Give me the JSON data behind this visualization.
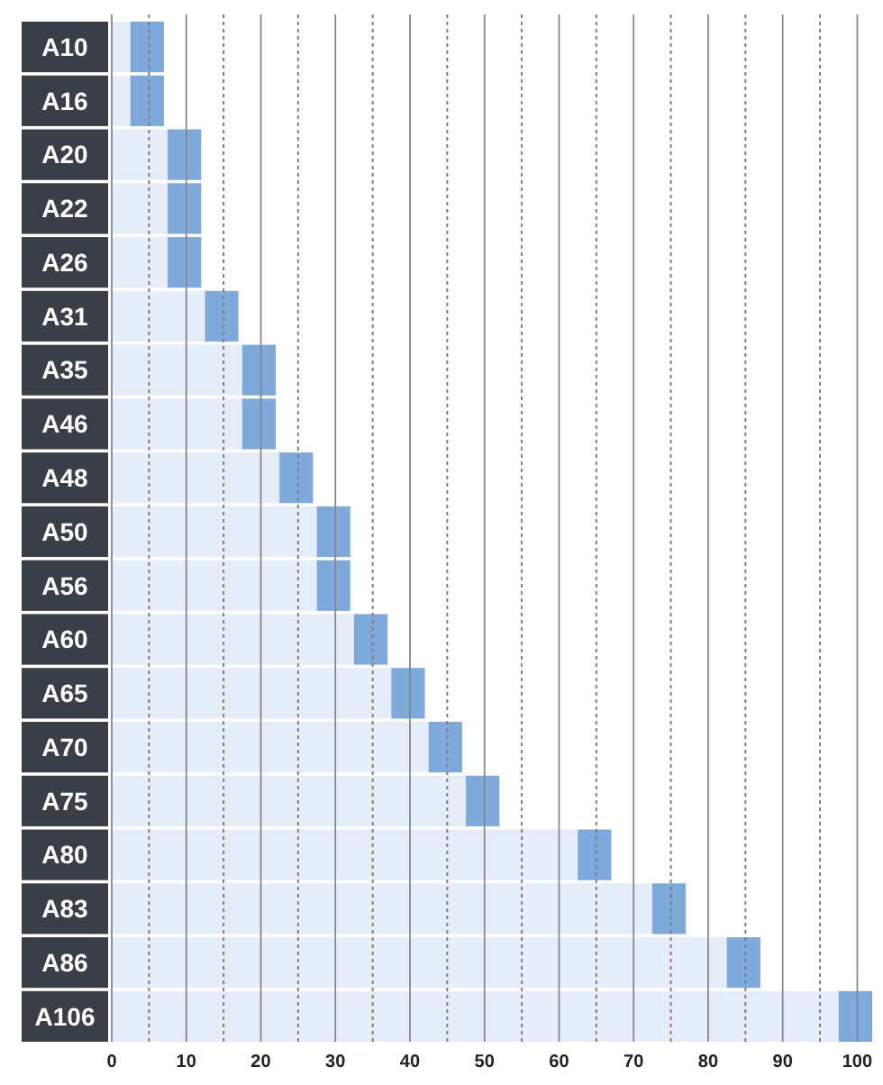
{
  "chart_data": {
    "type": "bar",
    "orientation": "horizontal",
    "stacked": true,
    "categories": [
      "A10",
      "A16",
      "A20",
      "A22",
      "A26",
      "A31",
      "A35",
      "A46",
      "A48",
      "A50",
      "A56",
      "A60",
      "A65",
      "A70",
      "A75",
      "A80",
      "A83",
      "A86",
      "A106"
    ],
    "series": [
      {
        "color": "#e4edf8",
        "values": [
          2.5,
          2.5,
          7.5,
          7.5,
          7.5,
          12.5,
          17.5,
          17.5,
          22.5,
          27.5,
          27.5,
          32.5,
          37.5,
          42.5,
          47.5,
          62.5,
          72.5,
          82.5,
          97.5
        ]
      },
      {
        "color": "#7eaadb",
        "values": [
          4.5,
          4.5,
          4.5,
          4.5,
          4.5,
          4.5,
          4.5,
          4.5,
          4.5,
          4.5,
          4.5,
          4.5,
          4.5,
          4.5,
          4.5,
          4.5,
          4.5,
          4.5,
          4.5
        ]
      }
    ],
    "xlim": [
      0,
      102
    ],
    "xticks": [
      0,
      {
        "value": 5,
        "label": null
      },
      10,
      {
        "value": 15,
        "label": null
      },
      20,
      {
        "value": 25,
        "label": null
      },
      30,
      {
        "value": 35,
        "label": null
      },
      40,
      {
        "value": 45,
        "label": null
      },
      50,
      {
        "value": 55,
        "label": null
      },
      60,
      {
        "value": 65,
        "label": null
      },
      70,
      {
        "value": 75,
        "label": null
      },
      80,
      {
        "value": 85,
        "label": null
      },
      90,
      {
        "value": 95,
        "label": null
      },
      100
    ],
    "grid": "x"
  }
}
